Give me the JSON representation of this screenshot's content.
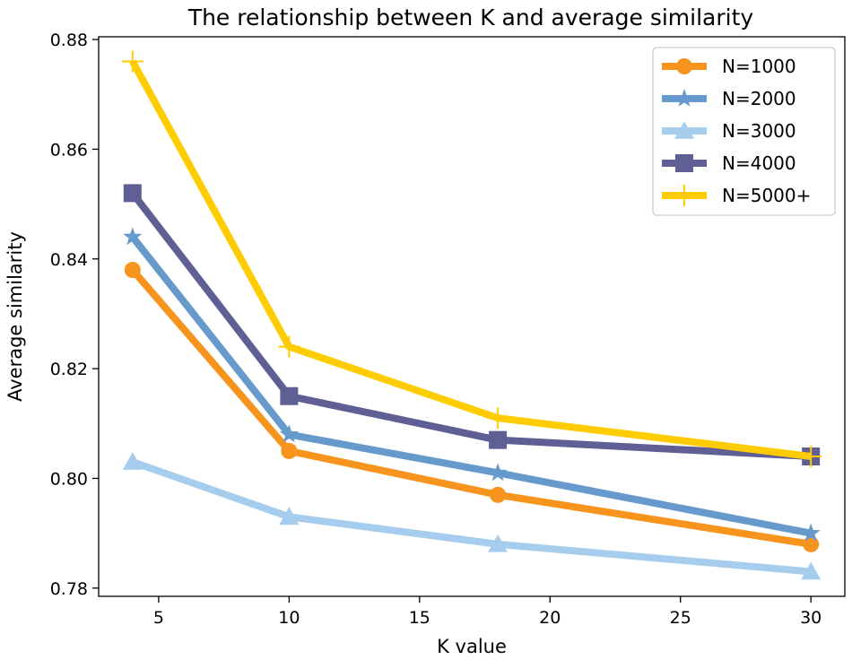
{
  "chart_data": {
    "type": "line",
    "title": "The relationship between K and average similarity",
    "xlabel": "K value",
    "ylabel": "Average similarity",
    "x": [
      4,
      10,
      18,
      30
    ],
    "xlim": [
      2.7,
      31.3
    ],
    "ylim": [
      0.7785,
      0.8805
    ],
    "xticks": [
      5,
      10,
      15,
      20,
      25,
      30
    ],
    "yticks": [
      0.78,
      0.8,
      0.82,
      0.84,
      0.86,
      0.88
    ],
    "xtick_labels": [
      "5",
      "10",
      "15",
      "20",
      "25",
      "30"
    ],
    "ytick_labels": [
      "0.78",
      "0.80",
      "0.82",
      "0.84",
      "0.86",
      "0.88"
    ],
    "grid": false,
    "legend_position": "top-right",
    "series": [
      {
        "name": "N=1000",
        "values": [
          0.838,
          0.805,
          0.797,
          0.788
        ],
        "color": "#F7941D",
        "marker": "circle"
      },
      {
        "name": "N=2000",
        "values": [
          0.844,
          0.808,
          0.801,
          0.79
        ],
        "color": "#6699CC",
        "marker": "star"
      },
      {
        "name": "N=3000",
        "values": [
          0.803,
          0.793,
          0.788,
          0.783
        ],
        "color": "#A6CDEE",
        "marker": "triangle"
      },
      {
        "name": "N=4000",
        "values": [
          0.852,
          0.815,
          0.807,
          0.804
        ],
        "color": "#5F5F96",
        "marker": "square"
      },
      {
        "name": "N=5000+",
        "values": [
          0.876,
          0.824,
          0.811,
          0.804
        ],
        "color": "#FFCC00",
        "marker": "plus"
      }
    ]
  }
}
